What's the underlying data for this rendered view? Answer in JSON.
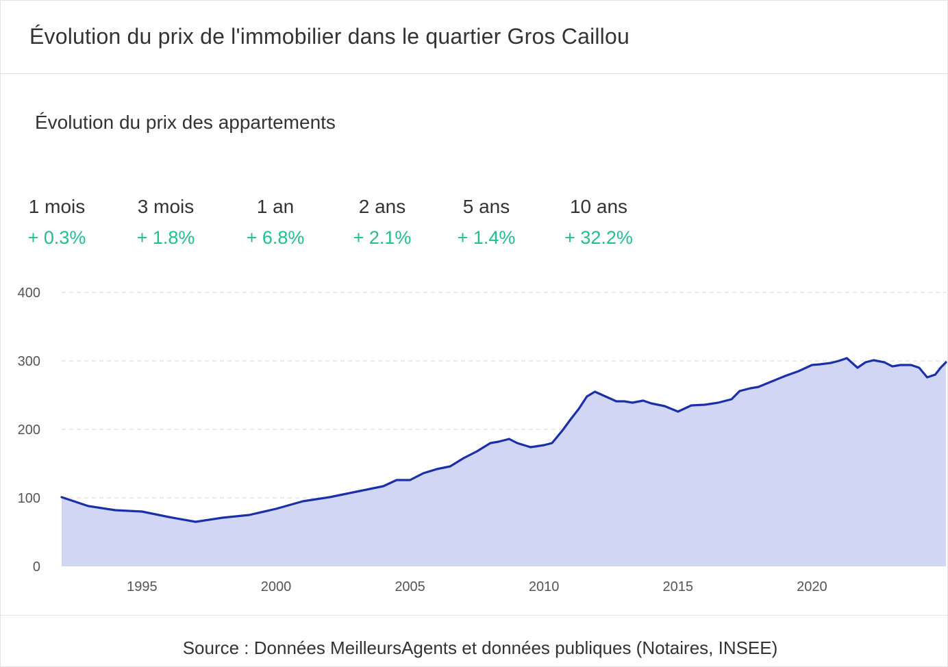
{
  "header": {
    "title": "Évolution du prix de l'immobilier dans le quartier Gros Caillou"
  },
  "subtitle": "Évolution du prix des appartements",
  "stats": [
    {
      "label": "1 mois",
      "value": "+ 0.3%"
    },
    {
      "label": "3 mois",
      "value": "+ 1.8%"
    },
    {
      "label": "1 an",
      "value": "+ 6.8%"
    },
    {
      "label": "2 ans",
      "value": "+ 2.1%"
    },
    {
      "label": "5 ans",
      "value": "+ 1.4%"
    },
    {
      "label": "10 ans",
      "value": "+ 32.2%"
    }
  ],
  "colors": {
    "line": "#1a2fa8",
    "fill": "#d0d6f3",
    "positive": "#1fc08e",
    "grid": "#dddddd"
  },
  "chart_data": {
    "type": "area",
    "xlabel": "",
    "ylabel": "",
    "xlim": [
      1992,
      2025
    ],
    "ylim": [
      0,
      400
    ],
    "yticks": [
      0,
      100,
      200,
      300,
      400
    ],
    "xticks": [
      1995,
      2000,
      2005,
      2010,
      2015,
      2020
    ],
    "grid": true,
    "series": [
      {
        "x": [
          1992.0,
          1993.0,
          1994.0,
          1995.0,
          1996.0,
          1997.0,
          1998.0,
          1999.0,
          2000.0,
          2001.0,
          2002.0,
          2003.0,
          2003.5,
          2004.0,
          2004.5,
          2005.0,
          2005.5,
          2006.0,
          2006.5,
          2007.0,
          2007.5,
          2008.0,
          2008.3,
          2008.7,
          2009.0,
          2009.5,
          2010.0,
          2010.3,
          2010.7,
          2011.0,
          2011.3,
          2011.6,
          2011.9,
          2012.3,
          2012.7,
          2013.0,
          2013.3,
          2013.7,
          2014.0,
          2014.5,
          2015.0,
          2015.5,
          2016.0,
          2016.5,
          2017.0,
          2017.3,
          2017.7,
          2018.0,
          2018.5,
          2019.0,
          2019.5,
          2020.0,
          2020.3,
          2020.7,
          2021.0,
          2021.3,
          2021.7,
          2022.0,
          2022.3,
          2022.7,
          2023.0,
          2023.3,
          2023.7,
          2024.0,
          2024.3,
          2024.6,
          2024.8,
          2025.0
        ],
        "y": [
          101,
          88,
          82,
          80,
          72,
          65,
          71,
          75,
          84,
          95,
          101,
          109,
          113,
          117,
          126,
          126,
          136,
          142,
          146,
          158,
          168,
          180,
          182,
          186,
          180,
          174,
          177,
          180,
          199,
          215,
          230,
          248,
          255,
          248,
          241,
          241,
          239,
          242,
          238,
          234,
          226,
          235,
          236,
          239,
          244,
          256,
          260,
          262,
          270,
          278,
          285,
          294,
          295,
          297,
          300,
          304,
          290,
          298,
          301,
          298,
          292,
          294,
          294,
          290,
          276,
          280,
          290,
          298
        ]
      }
    ]
  },
  "footer": {
    "source": "Source : Données MeilleursAgents et données publiques (Notaires, INSEE)"
  }
}
